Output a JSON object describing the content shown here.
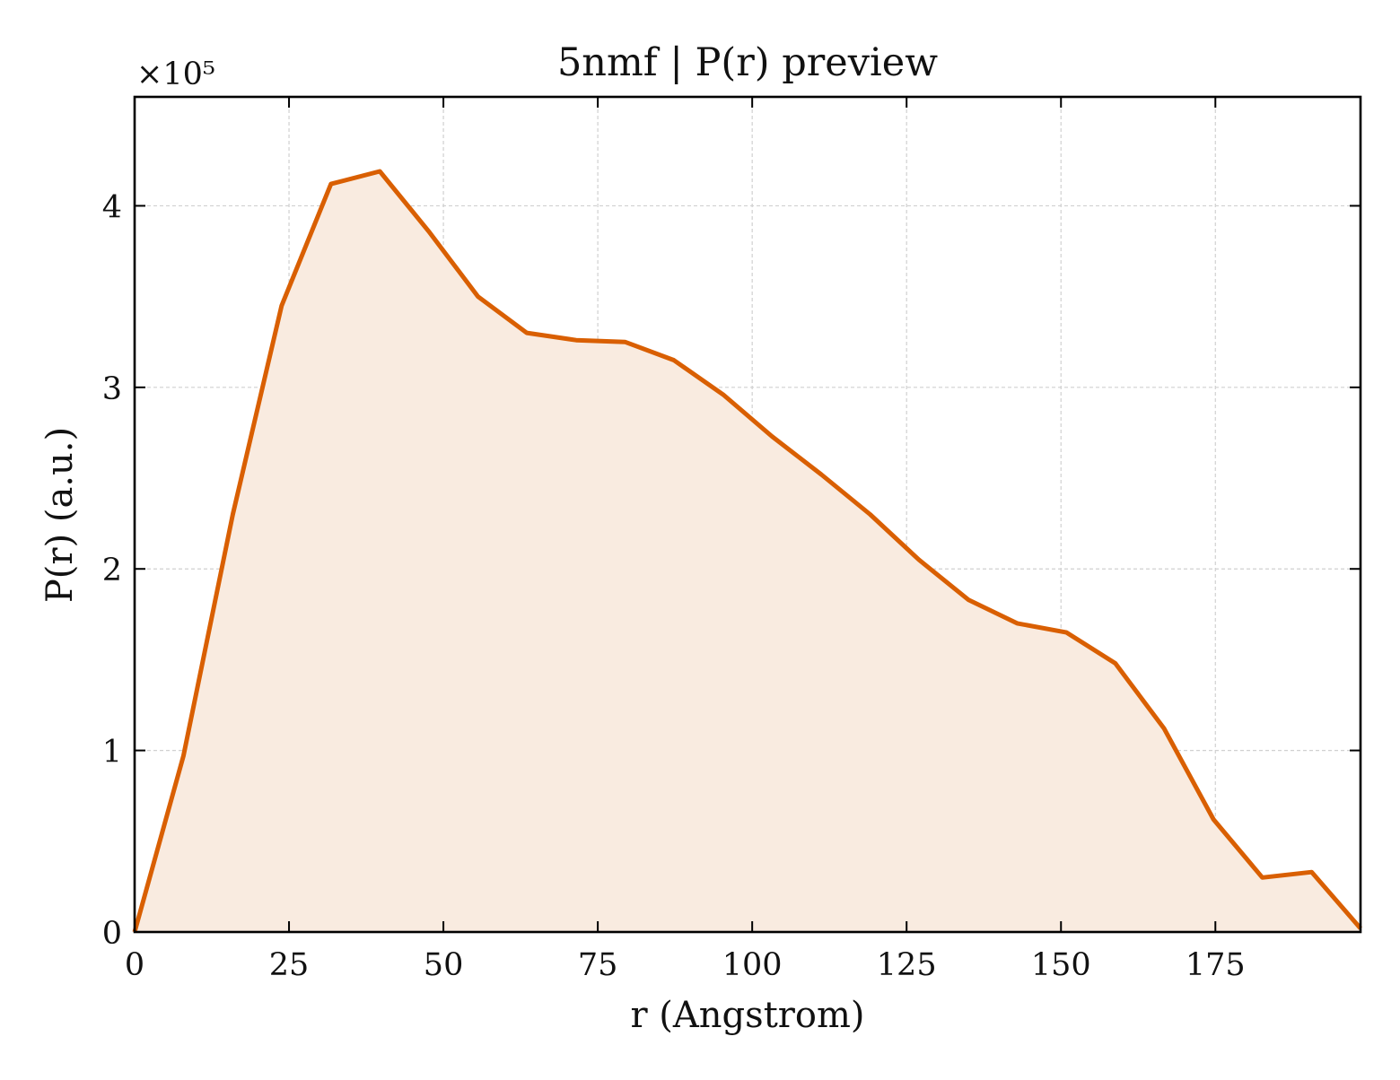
{
  "chart_data": {
    "type": "area",
    "title": "5nmf | P(r) preview",
    "xlabel": "r (Angstrom)",
    "ylabel": "P(r) (a.u.)",
    "y_multiplier_label": "×10⁵",
    "y_scale_factor": 100000,
    "xlim": [
      0,
      198.5
    ],
    "ylim": [
      0,
      460000
    ],
    "x_ticks": [
      0,
      25,
      50,
      75,
      100,
      125,
      150,
      175
    ],
    "x_tick_labels": [
      "0",
      "25",
      "50",
      "75",
      "100",
      "125",
      "150",
      "175"
    ],
    "y_ticks": [
      0,
      100000,
      200000,
      300000,
      400000
    ],
    "y_tick_labels": [
      "0",
      "1",
      "2",
      "3",
      "4"
    ],
    "grid": true,
    "line_color": "#d95f02",
    "fill_color": "#f9ebe0",
    "series": [
      {
        "x": [
          0,
          7.9,
          15.9,
          23.8,
          31.8,
          39.7,
          47.6,
          55.6,
          63.5,
          71.5,
          79.4,
          87.3,
          95.3,
          103.2,
          111.2,
          119.1,
          127.0,
          135.0,
          142.9,
          150.9,
          158.8,
          166.7,
          174.7,
          182.6,
          190.6,
          198.5
        ],
        "y": [
          0,
          97000,
          230000,
          345000,
          412000,
          419000,
          386000,
          350000,
          330000,
          326000,
          325000,
          315000,
          296000,
          273000,
          252000,
          230000,
          205000,
          183000,
          170000,
          165000,
          148000,
          112000,
          62000,
          30000,
          33000,
          2000
        ]
      }
    ]
  }
}
